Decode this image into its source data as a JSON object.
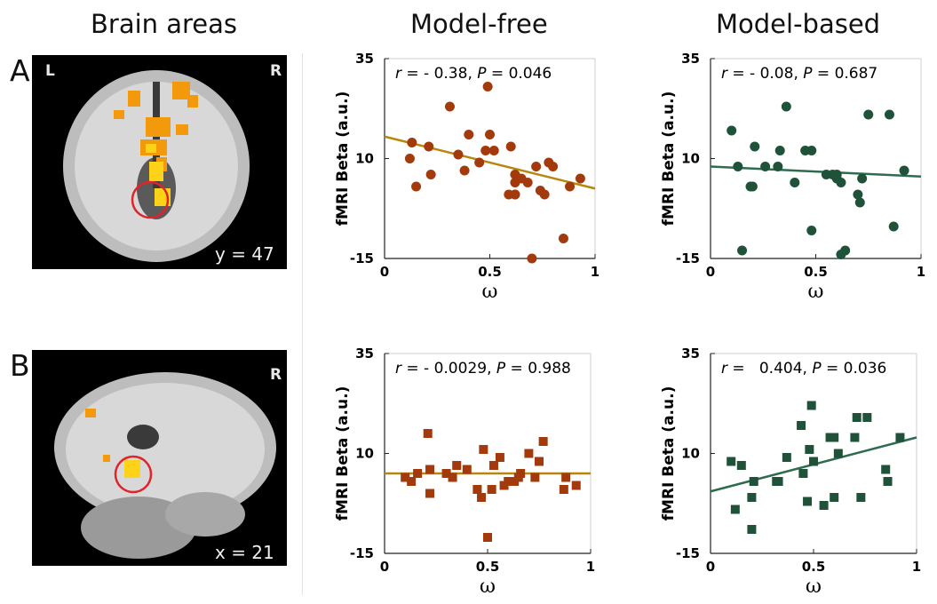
{
  "headers": {
    "brain": "Brain areas",
    "free": "Model-free",
    "based": "Model-based"
  },
  "rows": [
    {
      "label": "A",
      "brain_L": "L",
      "brain_R": "R",
      "coord": "y = 47"
    },
    {
      "label": "B",
      "brain_L": "",
      "brain_R": "R",
      "coord": "x = 21"
    }
  ],
  "colors": {
    "free_marker": "#a33a0c",
    "free_line": "#b8860b",
    "based_marker": "#1f5239",
    "based_line": "#2e6b4f",
    "roi_circle": "#e0242a"
  },
  "chart_data": [
    {
      "type": "scatter",
      "marker": "circle",
      "panel": "A-free",
      "stat_r": "- 0.38",
      "stat_p": "0.046",
      "ylabel": "fMRI Beta (a.u.)",
      "xlabel": "ω",
      "xlim": [
        0,
        1
      ],
      "ylim": [
        -15,
        35
      ],
      "xticks": [
        "0",
        "0.5",
        "1"
      ],
      "yticks": [
        "-15",
        "10",
        "35"
      ],
      "points": [
        [
          0.12,
          10
        ],
        [
          0.13,
          14
        ],
        [
          0.15,
          3
        ],
        [
          0.21,
          13
        ],
        [
          0.22,
          6
        ],
        [
          0.31,
          23
        ],
        [
          0.35,
          11
        ],
        [
          0.38,
          7
        ],
        [
          0.4,
          16
        ],
        [
          0.45,
          9
        ],
        [
          0.48,
          12
        ],
        [
          0.49,
          28
        ],
        [
          0.5,
          16
        ],
        [
          0.52,
          12
        ],
        [
          0.6,
          13
        ],
        [
          0.59,
          1
        ],
        [
          0.62,
          1
        ],
        [
          0.62,
          1
        ],
        [
          0.62,
          6
        ],
        [
          0.62,
          4
        ],
        [
          0.65,
          5
        ],
        [
          0.68,
          4
        ],
        [
          0.72,
          8
        ],
        [
          0.74,
          2
        ],
        [
          0.76,
          1
        ],
        [
          0.78,
          9
        ],
        [
          0.8,
          8
        ],
        [
          0.85,
          -10
        ],
        [
          0.88,
          3
        ],
        [
          0.93,
          5
        ],
        [
          0.7,
          -15
        ]
      ],
      "fit": [
        [
          0,
          15.5
        ],
        [
          1,
          2.5
        ]
      ]
    },
    {
      "type": "scatter",
      "marker": "circle",
      "panel": "A-based",
      "stat_r": "- 0.08",
      "stat_p": "0.687",
      "ylabel": "fMRI Beta (a.u.)",
      "xlabel": "ω",
      "xlim": [
        0,
        1
      ],
      "ylim": [
        -15,
        35
      ],
      "xticks": [
        "0",
        "0.5",
        "1"
      ],
      "yticks": [
        "-15",
        "10",
        "35"
      ],
      "points": [
        [
          0.1,
          17
        ],
        [
          0.13,
          8
        ],
        [
          0.15,
          -13
        ],
        [
          0.19,
          3
        ],
        [
          0.2,
          3
        ],
        [
          0.21,
          13
        ],
        [
          0.26,
          8
        ],
        [
          0.32,
          8
        ],
        [
          0.33,
          12
        ],
        [
          0.36,
          23
        ],
        [
          0.4,
          4
        ],
        [
          0.45,
          12
        ],
        [
          0.48,
          12
        ],
        [
          0.48,
          -8
        ],
        [
          0.55,
          6
        ],
        [
          0.58,
          6
        ],
        [
          0.6,
          6
        ],
        [
          0.6,
          5
        ],
        [
          0.62,
          4
        ],
        [
          0.62,
          -14
        ],
        [
          0.64,
          -13
        ],
        [
          0.7,
          1
        ],
        [
          0.71,
          -1
        ],
        [
          0.72,
          5
        ],
        [
          0.75,
          21
        ],
        [
          0.85,
          21
        ],
        [
          0.87,
          -7
        ],
        [
          0.92,
          7
        ]
      ],
      "fit": [
        [
          0,
          8
        ],
        [
          1,
          5.5
        ]
      ]
    },
    {
      "type": "scatter",
      "marker": "square",
      "panel": "B-free",
      "stat_r": "- 0.0029",
      "stat_p": "0.988",
      "ylabel": "fMRI Beta (a.u.)",
      "xlabel": "ω",
      "xlim": [
        0,
        1
      ],
      "ylim": [
        -15,
        35
      ],
      "xticks": [
        "0",
        "0.5",
        "1"
      ],
      "yticks": [
        "-15",
        "10",
        "35"
      ],
      "points": [
        [
          0.1,
          4
        ],
        [
          0.13,
          3
        ],
        [
          0.16,
          5
        ],
        [
          0.21,
          15
        ],
        [
          0.22,
          6
        ],
        [
          0.22,
          0
        ],
        [
          0.3,
          5
        ],
        [
          0.33,
          4
        ],
        [
          0.35,
          7
        ],
        [
          0.4,
          6
        ],
        [
          0.45,
          1
        ],
        [
          0.47,
          -1
        ],
        [
          0.48,
          11
        ],
        [
          0.5,
          -11
        ],
        [
          0.52,
          1
        ],
        [
          0.53,
          7
        ],
        [
          0.56,
          9
        ],
        [
          0.58,
          2
        ],
        [
          0.6,
          3
        ],
        [
          0.63,
          3
        ],
        [
          0.65,
          4
        ],
        [
          0.66,
          5
        ],
        [
          0.7,
          10
        ],
        [
          0.73,
          4
        ],
        [
          0.75,
          8
        ],
        [
          0.77,
          13
        ],
        [
          0.87,
          1
        ],
        [
          0.88,
          4
        ],
        [
          0.93,
          2
        ]
      ],
      "fit": [
        [
          0,
          5
        ],
        [
          1,
          5
        ]
      ]
    },
    {
      "type": "scatter",
      "marker": "square",
      "panel": "B-based",
      "stat_r": "  0.404",
      "stat_p": "0.036",
      "ylabel": "fMRI Beta (a.u.)",
      "xlabel": "ω",
      "xlim": [
        0,
        1
      ],
      "ylim": [
        -15,
        35
      ],
      "xticks": [
        "0",
        "0.5",
        "1"
      ],
      "yticks": [
        "-15",
        "10",
        "35"
      ],
      "points": [
        [
          0.1,
          8
        ],
        [
          0.12,
          -4
        ],
        [
          0.15,
          7
        ],
        [
          0.2,
          -9
        ],
        [
          0.2,
          -1
        ],
        [
          0.21,
          3
        ],
        [
          0.32,
          3
        ],
        [
          0.33,
          3
        ],
        [
          0.37,
          9
        ],
        [
          0.44,
          17
        ],
        [
          0.45,
          5
        ],
        [
          0.47,
          -2
        ],
        [
          0.48,
          11
        ],
        [
          0.49,
          22
        ],
        [
          0.5,
          8
        ],
        [
          0.55,
          -3
        ],
        [
          0.58,
          14
        ],
        [
          0.6,
          -1
        ],
        [
          0.6,
          14
        ],
        [
          0.62,
          10
        ],
        [
          0.7,
          14
        ],
        [
          0.71,
          19
        ],
        [
          0.73,
          -1
        ],
        [
          0.76,
          19
        ],
        [
          0.85,
          6
        ],
        [
          0.86,
          3
        ],
        [
          0.92,
          14
        ]
      ],
      "fit": [
        [
          0,
          0.5
        ],
        [
          1,
          14
        ]
      ]
    }
  ]
}
